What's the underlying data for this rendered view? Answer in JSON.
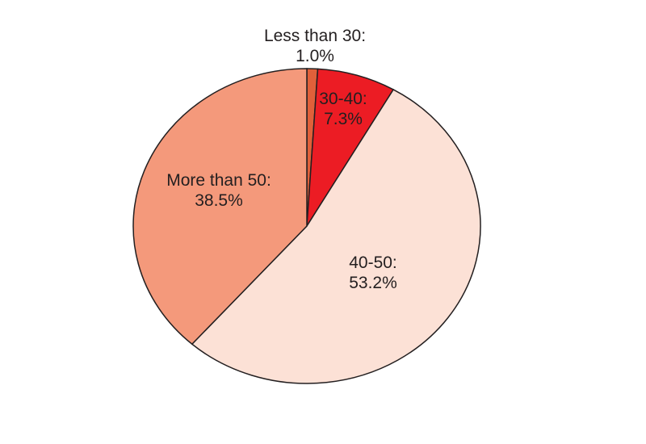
{
  "chart_data": {
    "type": "pie",
    "slices": [
      {
        "label": "Less than 30:",
        "value_label": "1.0%",
        "value": 1.0,
        "color": "#e0603a"
      },
      {
        "label": "30-40:",
        "value_label": "7.3%",
        "value": 7.3,
        "color": "#ec1c24"
      },
      {
        "label": "40-50:",
        "value_label": "53.2%",
        "value": 53.2,
        "color": "#fce1d6"
      },
      {
        "label": "More than 50:",
        "value_label": "38.5%",
        "value": 38.5,
        "color": "#f4997b"
      }
    ],
    "start": "top",
    "direction": "clockwise",
    "legend": "none",
    "outline_color": "#231f20"
  }
}
